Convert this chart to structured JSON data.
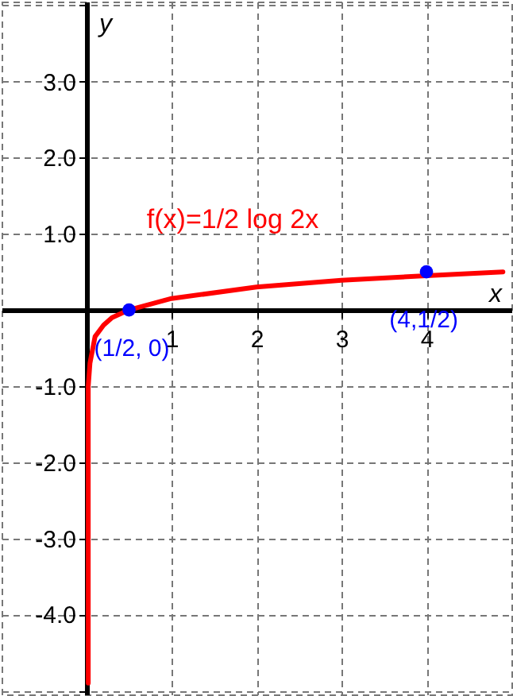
{
  "chart_data": {
    "type": "line",
    "xlabel": "x",
    "ylabel": "y",
    "xlim": [
      -1,
      5
    ],
    "ylim": [
      -5.05,
      4.05
    ],
    "xticks": [
      1,
      2,
      3,
      4
    ],
    "yticks": [
      {
        "value": -5,
        "label": null
      },
      {
        "value": -4,
        "label": "-4.0"
      },
      {
        "value": -3,
        "label": "-3.0"
      },
      {
        "value": -2,
        "label": "-2.0"
      },
      {
        "value": -1,
        "label": "-1.0"
      },
      {
        "value": 1,
        "label": "1.0"
      },
      {
        "value": 2,
        "label": "2.0"
      },
      {
        "value": 3,
        "label": "3.0"
      },
      {
        "value": 4,
        "label": null
      }
    ],
    "grid": true,
    "series": [
      {
        "name": "f(x)=1/2 log 2x",
        "color": "#ff0000",
        "x": [
          0.02,
          0.02,
          0.04,
          0.1,
          0.2,
          0.3,
          0.5,
          1,
          2,
          3,
          4,
          4.9
        ],
        "values": [
          -4.9,
          -1.0,
          -0.7,
          -0.35,
          -0.2,
          -0.1,
          0,
          0.15,
          0.3,
          0.39,
          0.45,
          0.5
        ]
      },
      {
        "type": "scatter",
        "color": "#0000ff",
        "marker": "circle",
        "x": [
          0.5,
          4
        ],
        "values": [
          0,
          0.5
        ]
      }
    ],
    "annotations": [
      {
        "text": "(1/2, 0)",
        "x": 0.5,
        "y": 0
      },
      {
        "text": "(4,1/2)",
        "x": 4,
        "y": 0.5
      }
    ]
  }
}
